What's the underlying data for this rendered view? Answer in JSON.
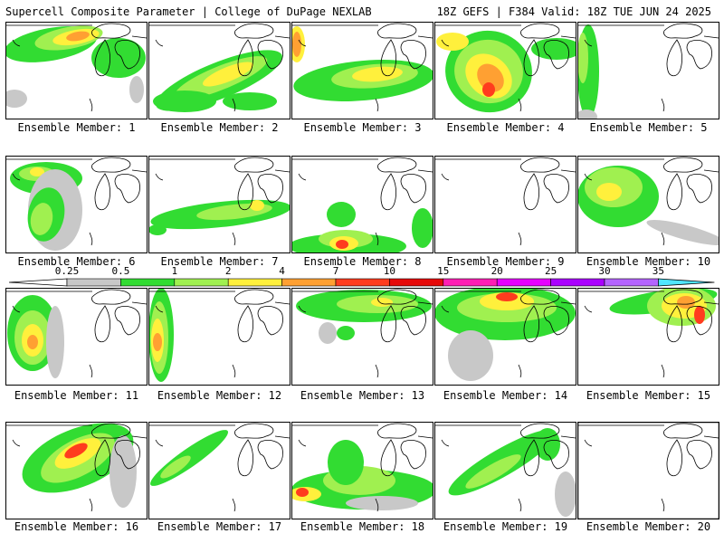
{
  "header": {
    "title": "Supercell Composite Parameter | College of DuPage NEXLAB",
    "valid": "18Z GEFS | F384 Valid: 18Z TUE JUN 24 2025"
  },
  "legend": {
    "ticks": [
      "0.25",
      "0.5",
      "1",
      "2",
      "4",
      "7",
      "10",
      "15",
      "20",
      "25",
      "30",
      "35"
    ],
    "colors": [
      "#c8c8c8",
      "#32dc32",
      "#a0f050",
      "#fff03c",
      "#ffa032",
      "#ff3c1e",
      "#e60a0a",
      "#ff1eb4",
      "#e600ff",
      "#aa00ff",
      "#b464ff",
      "#50e6ff"
    ]
  },
  "panels": [
    {
      "caption": "Ensemble Member: 1"
    },
    {
      "caption": "Ensemble Member: 2"
    },
    {
      "caption": "Ensemble Member: 3"
    },
    {
      "caption": "Ensemble Member: 4"
    },
    {
      "caption": "Ensemble Member: 5"
    },
    {
      "caption": "Ensemble Member: 6"
    },
    {
      "caption": "Ensemble Member: 7"
    },
    {
      "caption": "Ensemble Member: 8"
    },
    {
      "caption": "Ensemble Member: 9"
    },
    {
      "caption": "Ensemble Member: 10"
    },
    {
      "caption": "Ensemble Member: 11"
    },
    {
      "caption": "Ensemble Member: 12"
    },
    {
      "caption": "Ensemble Member: 13"
    },
    {
      "caption": "Ensemble Member: 14"
    },
    {
      "caption": "Ensemble Member: 15"
    },
    {
      "caption": "Ensemble Member: 16"
    },
    {
      "caption": "Ensemble Member: 17"
    },
    {
      "caption": "Ensemble Member: 18"
    },
    {
      "caption": "Ensemble Member: 19"
    },
    {
      "caption": "Ensemble Member: 20"
    }
  ]
}
